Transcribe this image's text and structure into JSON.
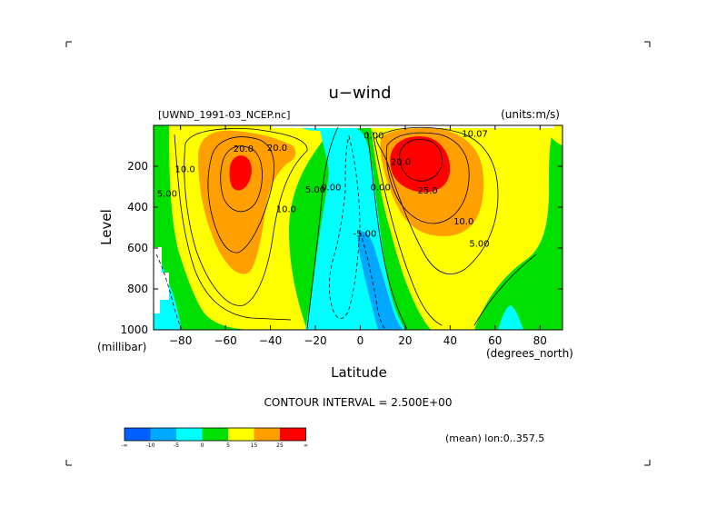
{
  "chart_data": {
    "type": "heatmap",
    "title": "u−wind",
    "subtitle_left": "[UWND_1991-03_NCEP.nc]",
    "subtitle_right": "(units:m/s)",
    "xlabel": "Latitude",
    "ylabel": "Level",
    "x_unit_label": "(degrees_north)",
    "y_unit_label": "(millibar)",
    "xlim": [
      -92,
      90
    ],
    "ylim": [
      1000,
      0
    ],
    "x_ticks": [
      -80,
      -60,
      -40,
      -20,
      0,
      20,
      40,
      60,
      80
    ],
    "x_tick_labels": [
      "−80",
      "−60",
      "−40",
      "−20",
      "0",
      "20",
      "40",
      "60",
      "80"
    ],
    "y_ticks": [
      200,
      400,
      600,
      800,
      1000
    ],
    "y_tick_labels": [
      "200",
      "400",
      "600",
      "800",
      "1000"
    ],
    "contour_interval_text": "CONTOUR INTERVAL = 2.500E+00",
    "mean_text": "(mean) lon:0..357.5",
    "contour_labels": [
      {
        "text": "20.0",
        "x": -52,
        "y": 115
      },
      {
        "text": "20.0",
        "x": -37,
        "y": 110
      },
      {
        "text": "10.0",
        "x": -78,
        "y": 215
      },
      {
        "text": "5.00",
        "x": -86,
        "y": 335
      },
      {
        "text": "10.0",
        "x": -33,
        "y": 410
      },
      {
        "text": "5.00",
        "x": -20,
        "y": 315
      },
      {
        "text": "0.00",
        "x": -13,
        "y": 305
      },
      {
        "text": "0.00",
        "x": 6,
        "y": 50
      },
      {
        "text": "0.00",
        "x": 9,
        "y": 305
      },
      {
        "text": "-5.00",
        "x": 2,
        "y": 530
      },
      {
        "text": "20.0",
        "x": 18,
        "y": 180
      },
      {
        "text": "25.0",
        "x": 30,
        "y": 320
      },
      {
        "text": "10.07",
        "x": 51,
        "y": 42
      },
      {
        "text": "10.0",
        "x": 46,
        "y": 470
      },
      {
        "text": "5.00",
        "x": 53,
        "y": 580
      }
    ],
    "colorbar": {
      "levels": [
        "-∞",
        "-10",
        "-5",
        "0",
        "5",
        "15",
        "25",
        "∞"
      ],
      "colors": [
        "#0060ff",
        "#00a8ff",
        "#00ffff",
        "#00e000",
        "#ffff00",
        "#ffa000",
        "#ff0000"
      ]
    },
    "colors": {
      "lt_m5": "#00a8ff",
      "m5_0": "#00ffff",
      "0_5": "#00e000",
      "5_15": "#ffff00",
      "15_25": "#ffa000",
      "gt_25": "#ff0000"
    }
  }
}
